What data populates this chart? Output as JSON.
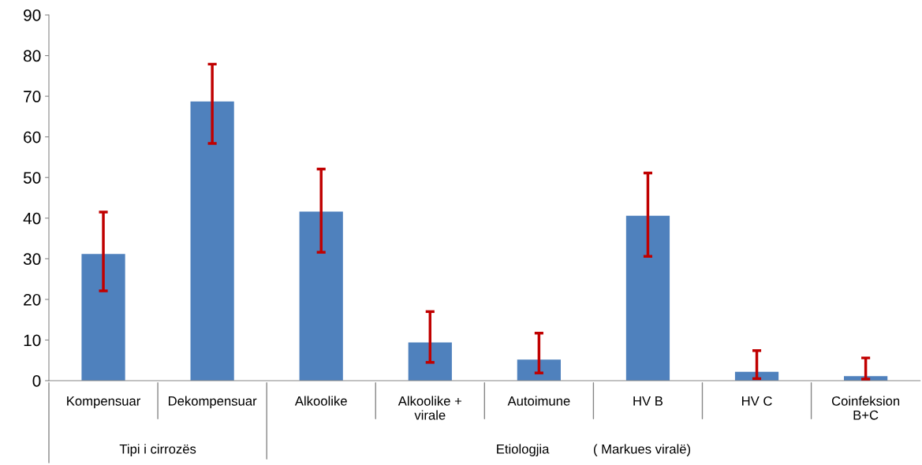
{
  "chart_data": {
    "type": "bar",
    "categories": [
      "Kompensuar",
      "Dekompensuar",
      "Alkoolike",
      "Alkoolike +\nvirale",
      "Autoimune",
      "HV B",
      "HV C",
      "Coinfeksion\nB+C"
    ],
    "values": [
      31.2,
      68.7,
      41.6,
      9.4,
      5.2,
      40.6,
      2.2,
      1.1
    ],
    "errors": [
      [
        22.1,
        41.5
      ],
      [
        58.4,
        77.9
      ],
      [
        31.6,
        52.1
      ],
      [
        4.5,
        17.0
      ],
      [
        1.9,
        11.7
      ],
      [
        30.6,
        51.1
      ],
      [
        0.5,
        7.4
      ],
      [
        0.4,
        5.6
      ]
    ],
    "color": "#4f81bd",
    "ylim": [
      0,
      90
    ],
    "yticks": [
      0,
      10,
      20,
      30,
      40,
      50,
      60,
      70,
      80,
      90
    ],
    "grid": false,
    "annotations": [
      "Tipi i cirrozës",
      "Etiologjia            ( Markues viralë)"
    ]
  }
}
